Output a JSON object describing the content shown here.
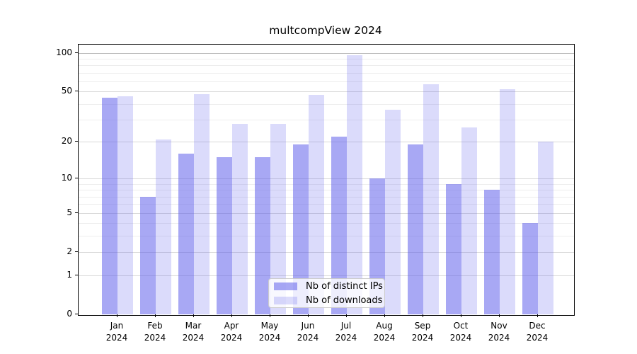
{
  "page": {
    "background": "#ffffff"
  },
  "chart_data": {
    "type": "bar",
    "title": "multcompView 2024",
    "categories": [
      "Jan",
      "Feb",
      "Mar",
      "Apr",
      "May",
      "Jun",
      "Jul",
      "Aug",
      "Sep",
      "Oct",
      "Nov",
      "Dec"
    ],
    "x_tick_year": "2024",
    "series": [
      {
        "name": "Nb of distinct IPs",
        "color": "rgba(90,90,235,0.53)",
        "values": [
          45,
          7,
          16,
          15,
          15,
          19,
          22,
          10,
          19,
          9,
          8,
          4
        ]
      },
      {
        "name": "Nb of downloads",
        "color": "rgba(90,90,235,0.22)",
        "values": [
          46,
          21,
          48,
          28,
          28,
          47,
          96,
          36,
          57,
          26,
          52,
          20
        ]
      }
    ],
    "y_axis": {
      "scale": "log10(1+value)",
      "major_ticks": [
        0,
        1,
        2,
        5,
        10,
        20,
        50,
        100
      ],
      "minor_gridlines": [
        3,
        4,
        6,
        7,
        8,
        9,
        30,
        40,
        60,
        70,
        80,
        90
      ],
      "axis_top_value": 116,
      "ylim": [
        0,
        116
      ]
    },
    "legend": {
      "position": "bottom-center"
    },
    "grid": true,
    "colors": {
      "grid_major": "#d9d9d9",
      "grid_major_100": "#bcbcbc",
      "grid_minor": "#ededed",
      "spine": "#000000",
      "text": "#000000"
    }
  }
}
